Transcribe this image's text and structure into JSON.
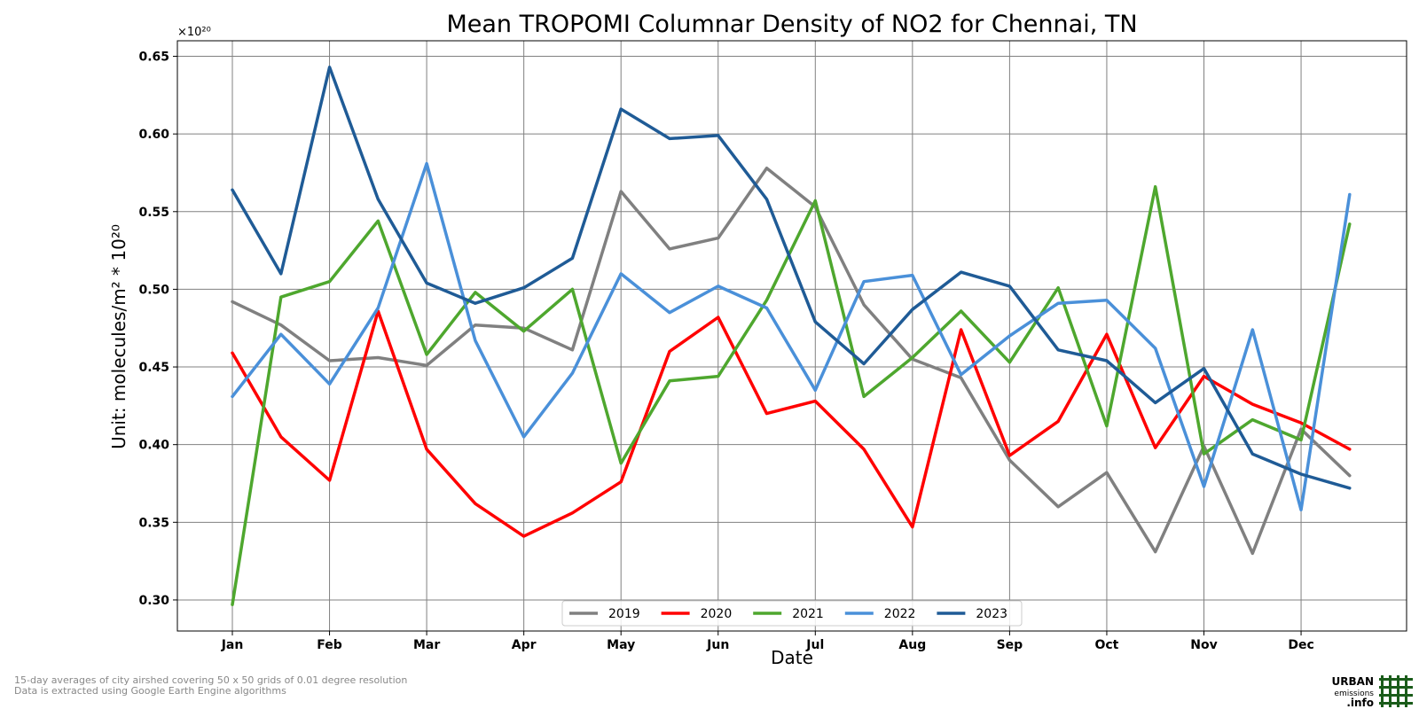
{
  "chart_data": {
    "type": "line",
    "title": "Mean TROPOMI Columnar Density of NO2 for Chennai, TN",
    "xlabel": "Date",
    "ylabel": "Unit: molecules/m² * 10²⁰",
    "y_multiplier": "×10²⁰",
    "ylim": [
      0.28,
      0.66
    ],
    "y_ticks": [
      0.3,
      0.35,
      0.4,
      0.45,
      0.5,
      0.55,
      0.6,
      0.65
    ],
    "y_tick_labels": [
      "0.30",
      "0.35",
      "0.40",
      "0.45",
      "0.50",
      "0.55",
      "0.60",
      "0.65"
    ],
    "x_tick_labels": [
      "Jan",
      "Feb",
      "Mar",
      "Apr",
      "May",
      "Jun",
      "Jul",
      "Aug",
      "Sep",
      "Oct",
      "Nov",
      "Dec"
    ],
    "x_ticks_month_index": [
      0,
      1,
      2,
      3,
      4,
      5,
      6,
      7,
      8,
      9,
      10,
      11
    ],
    "x_points_month_index": [
      0,
      0.5,
      1,
      1.5,
      2,
      2.5,
      3,
      3.5,
      4,
      4.5,
      5,
      5.5,
      6,
      6.5,
      7,
      7.5,
      8,
      8.5,
      9,
      9.5,
      10,
      10.5,
      11,
      11.5
    ],
    "grid": true,
    "legend_position": "bottom-center",
    "series": [
      {
        "name": "2019",
        "color": "#808080",
        "values": [
          0.492,
          0.477,
          0.454,
          0.456,
          0.451,
          0.477,
          0.475,
          0.461,
          0.563,
          0.526,
          0.533,
          0.578,
          0.553,
          0.49,
          0.455,
          0.443,
          0.39,
          0.36,
          0.382,
          0.331,
          0.399,
          0.33,
          0.41,
          0.38
        ]
      },
      {
        "name": "2020",
        "color": "#ff0000",
        "values": [
          0.459,
          0.405,
          0.377,
          0.486,
          0.397,
          0.362,
          0.341,
          0.356,
          0.376,
          0.46,
          0.482,
          0.42,
          0.428,
          0.397,
          0.347,
          0.474,
          0.393,
          0.415,
          0.471,
          0.398,
          0.444,
          0.426,
          0.414,
          0.397
        ]
      },
      {
        "name": "2021",
        "color": "#4ea72e",
        "values": [
          0.297,
          0.495,
          0.505,
          0.544,
          0.458,
          0.498,
          0.473,
          0.5,
          0.388,
          0.441,
          0.444,
          0.493,
          0.557,
          0.431,
          0.456,
          0.486,
          0.453,
          0.501,
          0.412,
          0.566,
          0.394,
          0.416,
          0.403,
          0.542
        ]
      },
      {
        "name": "2022",
        "color": "#4a90d9",
        "values": [
          0.431,
          0.471,
          0.439,
          0.488,
          0.581,
          0.467,
          0.405,
          0.446,
          0.51,
          0.485,
          0.502,
          0.488,
          0.435,
          0.505,
          0.509,
          0.445,
          0.47,
          0.491,
          0.493,
          0.462,
          0.373,
          0.474,
          0.358,
          0.561
        ]
      },
      {
        "name": "2023",
        "color": "#1f5b96",
        "values": [
          0.564,
          0.51,
          0.643,
          0.558,
          0.504,
          0.491,
          0.501,
          0.52,
          0.616,
          0.597,
          0.599,
          0.558,
          0.479,
          0.452,
          0.487,
          0.511,
          0.502,
          0.461,
          0.454,
          0.427,
          0.449,
          0.394,
          0.381,
          0.372
        ]
      }
    ]
  },
  "footnotes": [
    "15-day averages of city airshed covering 50 x 50 grids of 0.01 degree resolution",
    "Data is extracted using Google Earth Engine algorithms"
  ],
  "logo": {
    "line1": "URBAN",
    "line2": "emissions",
    "line3": ".info",
    "color": "#1a5c1a"
  }
}
